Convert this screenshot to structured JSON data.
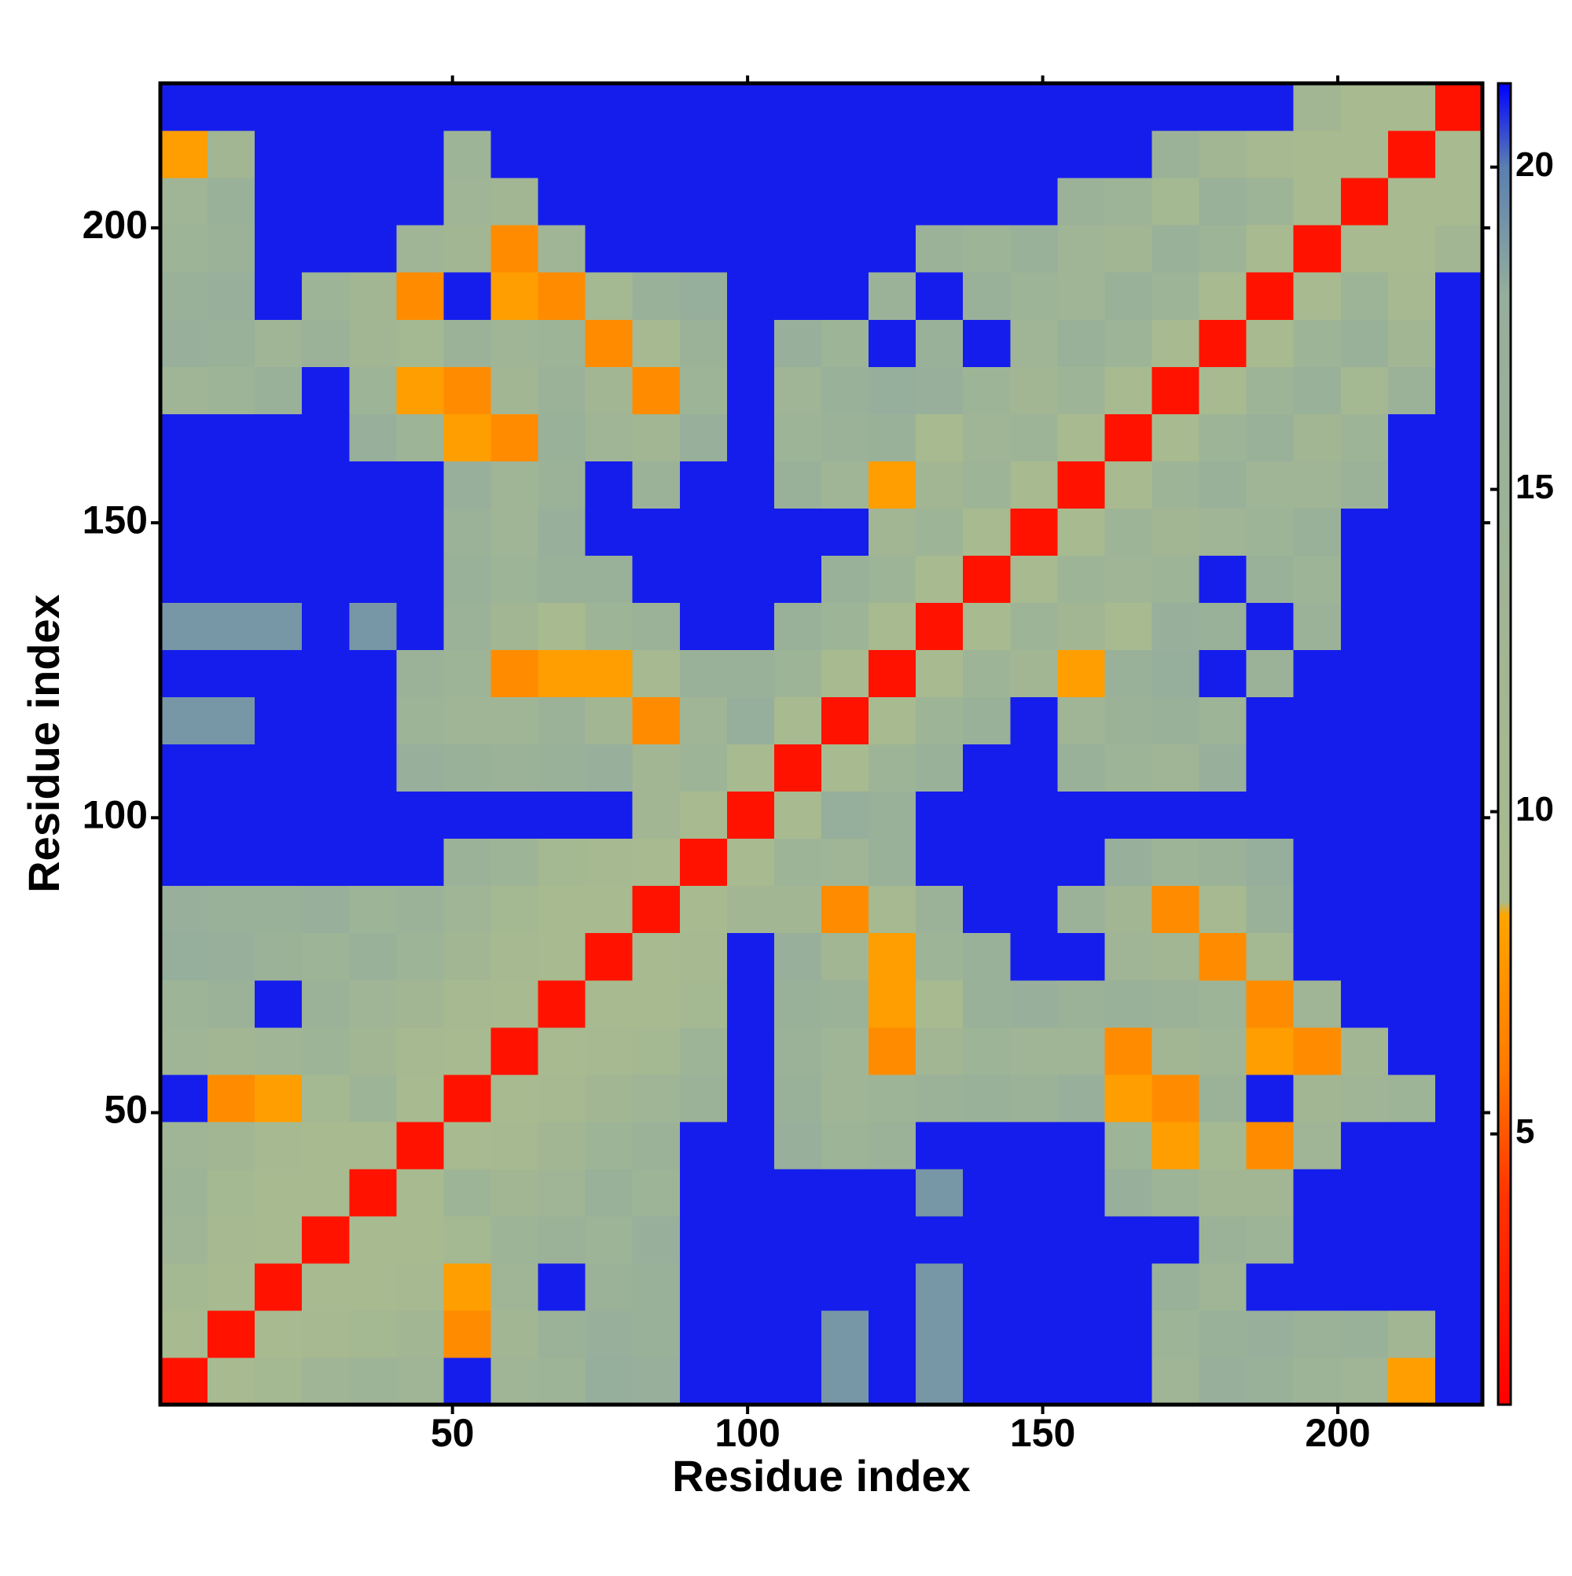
{
  "chart_data": {
    "type": "heatmap",
    "xlabel": "Residue index",
    "ylabel": "Residue index",
    "xlim": [
      0.5,
      224.5
    ],
    "ylim": [
      0.5,
      224.5
    ],
    "xticks": [
      50,
      100,
      150,
      200
    ],
    "yticks": [
      50,
      100,
      150,
      200
    ],
    "x": [
      4.5,
      12.5,
      20.5,
      28.5,
      36.5,
      44.5,
      52.5,
      60.5,
      68.5,
      76.5,
      84.5,
      92.5,
      100.5,
      108.5,
      116.5,
      124.5,
      132.5,
      140.5,
      148.5,
      156.5,
      164.5,
      172.5,
      180.5,
      188.5,
      196.5,
      204.5,
      212.5,
      220.5
    ],
    "y": [
      4.5,
      12.5,
      20.5,
      28.5,
      36.5,
      44.5,
      52.5,
      60.5,
      68.5,
      76.5,
      84.5,
      92.5,
      100.5,
      108.5,
      116.5,
      124.5,
      132.5,
      140.5,
      148.5,
      156.5,
      164.5,
      172.5,
      180.5,
      188.5,
      196.5,
      204.5,
      212.5,
      220.5
    ],
    "z": [
      [
        2,
        9,
        11,
        13,
        14,
        13,
        21,
        13,
        14,
        18,
        17,
        21,
        21,
        21,
        19,
        21,
        19,
        21,
        21,
        21,
        21,
        13,
        17,
        16,
        14,
        13,
        8,
        21
      ],
      [
        9,
        2,
        9,
        10,
        11,
        12,
        7,
        12,
        15,
        17,
        16,
        21,
        21,
        21,
        19,
        21,
        19,
        21,
        21,
        21,
        21,
        14,
        16,
        17,
        15,
        16,
        12,
        21
      ],
      [
        11,
        9,
        2,
        9,
        9,
        10,
        8,
        13,
        21,
        15,
        16,
        21,
        21,
        21,
        21,
        21,
        19,
        21,
        21,
        21,
        21,
        16,
        13,
        21,
        21,
        21,
        21,
        21
      ],
      [
        13,
        10,
        9,
        2,
        9,
        9,
        11,
        14,
        15,
        14,
        17,
        21,
        21,
        21,
        21,
        21,
        21,
        21,
        21,
        21,
        21,
        21,
        15,
        14,
        21,
        21,
        21,
        21
      ],
      [
        14,
        11,
        9,
        9,
        2,
        9,
        14,
        12,
        13,
        16,
        14,
        21,
        21,
        21,
        21,
        21,
        19,
        21,
        21,
        21,
        17,
        14,
        12,
        12,
        21,
        21,
        21,
        21
      ],
      [
        13,
        12,
        10,
        9,
        9,
        2,
        9,
        10,
        12,
        14,
        15,
        21,
        21,
        17,
        14,
        15,
        21,
        21,
        21,
        21,
        14,
        8,
        11,
        7,
        13,
        21,
        21,
        21
      ],
      [
        21,
        7,
        8,
        11,
        14,
        9,
        2,
        9,
        10,
        12,
        13,
        15,
        21,
        16,
        13,
        14,
        15,
        16,
        15,
        17,
        8,
        7,
        15,
        21,
        12,
        13,
        14,
        21
      ],
      [
        13,
        12,
        13,
        14,
        12,
        10,
        9,
        2,
        9,
        10,
        11,
        14,
        21,
        15,
        13,
        7,
        12,
        14,
        13,
        13,
        7,
        12,
        13,
        8,
        7,
        12,
        21,
        21
      ],
      [
        14,
        15,
        21,
        15,
        13,
        12,
        10,
        9,
        2,
        9,
        9,
        11,
        21,
        16,
        15,
        8,
        9,
        16,
        17,
        15,
        16,
        15,
        14,
        7,
        13,
        21,
        21,
        21
      ],
      [
        18,
        17,
        15,
        14,
        16,
        14,
        12,
        10,
        9,
        2,
        9,
        10,
        21,
        17,
        12,
        8,
        14,
        16,
        21,
        21,
        13,
        12,
        7,
        11,
        21,
        21,
        21,
        21
      ],
      [
        17,
        16,
        16,
        17,
        14,
        15,
        13,
        11,
        9,
        9,
        2,
        9,
        12,
        12,
        7,
        10,
        15,
        21,
        21,
        15,
        12,
        7,
        10,
        16,
        21,
        21,
        21,
        21
      ],
      [
        21,
        21,
        21,
        21,
        21,
        21,
        15,
        14,
        11,
        10,
        9,
        2,
        9,
        14,
        13,
        16,
        21,
        21,
        21,
        21,
        17,
        14,
        15,
        18,
        21,
        21,
        21,
        21
      ],
      [
        21,
        21,
        21,
        21,
        21,
        21,
        21,
        21,
        21,
        21,
        12,
        9,
        2,
        9,
        18,
        16,
        21,
        21,
        21,
        21,
        21,
        21,
        21,
        21,
        21,
        21,
        21,
        21
      ],
      [
        21,
        21,
        21,
        21,
        21,
        17,
        16,
        15,
        16,
        17,
        12,
        14,
        9,
        2,
        9,
        14,
        16,
        21,
        21,
        16,
        14,
        13,
        17,
        21,
        21,
        21,
        21,
        21
      ],
      [
        19,
        19,
        21,
        21,
        21,
        14,
        13,
        13,
        15,
        12,
        7,
        13,
        18,
        9,
        2,
        9,
        14,
        16,
        21,
        13,
        15,
        16,
        14,
        21,
        21,
        21,
        21,
        21
      ],
      [
        21,
        21,
        21,
        21,
        21,
        15,
        14,
        7,
        8,
        8,
        10,
        16,
        16,
        14,
        9,
        2,
        9,
        14,
        12,
        8,
        16,
        18,
        21,
        15,
        21,
        21,
        21,
        21
      ],
      [
        19,
        19,
        19,
        21,
        19,
        21,
        15,
        12,
        9,
        14,
        15,
        21,
        21,
        16,
        14,
        9,
        2,
        9,
        14,
        12,
        9,
        17,
        16,
        21,
        15,
        21,
        21,
        21
      ],
      [
        21,
        21,
        21,
        21,
        21,
        21,
        16,
        14,
        16,
        16,
        21,
        21,
        21,
        21,
        16,
        14,
        9,
        2,
        9,
        14,
        13,
        14,
        21,
        16,
        14,
        21,
        21,
        21
      ],
      [
        21,
        21,
        21,
        21,
        21,
        21,
        15,
        13,
        17,
        21,
        21,
        21,
        21,
        21,
        21,
        12,
        14,
        9,
        2,
        9,
        14,
        12,
        13,
        14,
        16,
        21,
        21,
        21
      ],
      [
        21,
        21,
        21,
        21,
        21,
        21,
        17,
        13,
        15,
        21,
        15,
        21,
        21,
        16,
        13,
        8,
        12,
        14,
        9,
        2,
        9,
        14,
        16,
        13,
        13,
        15,
        21,
        21
      ],
      [
        21,
        21,
        21,
        21,
        17,
        14,
        8,
        7,
        16,
        13,
        12,
        17,
        21,
        14,
        15,
        16,
        9,
        13,
        14,
        9,
        2,
        9,
        14,
        16,
        12,
        14,
        21,
        21
      ],
      [
        13,
        14,
        16,
        21,
        14,
        8,
        7,
        12,
        15,
        12,
        7,
        14,
        21,
        13,
        16,
        18,
        17,
        14,
        12,
        14,
        9,
        2,
        9,
        14,
        16,
        11,
        15,
        21
      ],
      [
        17,
        16,
        13,
        15,
        12,
        11,
        15,
        13,
        14,
        7,
        10,
        15,
        21,
        17,
        14,
        21,
        16,
        21,
        13,
        16,
        14,
        9,
        2,
        9,
        14,
        16,
        12,
        21
      ],
      [
        16,
        17,
        21,
        14,
        12,
        7,
        21,
        8,
        7,
        11,
        16,
        18,
        21,
        21,
        21,
        15,
        21,
        16,
        14,
        13,
        16,
        14,
        9,
        2,
        9,
        14,
        10,
        21
      ],
      [
        14,
        15,
        21,
        21,
        21,
        13,
        12,
        7,
        13,
        21,
        21,
        21,
        21,
        21,
        21,
        21,
        15,
        14,
        16,
        13,
        12,
        16,
        14,
        9,
        2,
        9,
        9,
        12
      ],
      [
        13,
        16,
        21,
        21,
        21,
        21,
        13,
        12,
        21,
        21,
        21,
        21,
        21,
        21,
        21,
        21,
        21,
        21,
        21,
        15,
        14,
        11,
        16,
        14,
        9,
        2,
        9,
        9
      ],
      [
        8,
        12,
        21,
        21,
        21,
        21,
        14,
        21,
        21,
        21,
        21,
        21,
        21,
        21,
        21,
        21,
        21,
        21,
        21,
        21,
        21,
        15,
        12,
        10,
        9,
        9,
        2,
        9
      ],
      [
        21,
        21,
        21,
        21,
        21,
        21,
        21,
        21,
        21,
        21,
        21,
        21,
        21,
        21,
        21,
        21,
        21,
        21,
        21,
        21,
        21,
        21,
        21,
        21,
        12,
        9,
        9,
        2
      ]
    ],
    "colorbar": {
      "clim": [
        0.8,
        21.3
      ],
      "ticks": [
        5,
        10,
        15,
        20
      ],
      "colorscale": [
        {
          "value": 0.8,
          "color": "#ff0000"
        },
        {
          "value": 4,
          "color": "#ff3300"
        },
        {
          "value": 6,
          "color": "#ff7a00"
        },
        {
          "value": 8.4,
          "color": "#ffa500"
        },
        {
          "value": 8.6,
          "color": "#a9bb8e"
        },
        {
          "value": 18,
          "color": "#96ae9c"
        },
        {
          "value": 20,
          "color": "#5a7fb0"
        },
        {
          "value": 21.3,
          "color": "#0000ff"
        }
      ]
    }
  }
}
